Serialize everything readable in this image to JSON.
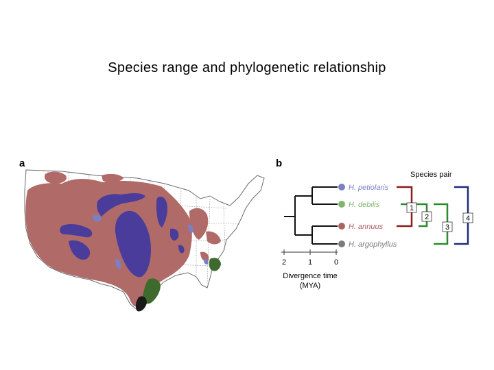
{
  "title": "Species range and phylogenetic relationship",
  "panels": {
    "a": {
      "letter": "a"
    },
    "b": {
      "letter": "b",
      "legend_heading": "Species pair",
      "species": [
        {
          "name": "H. petiolaris",
          "color": "#7b7fc4"
        },
        {
          "name": "H. debilis",
          "color": "#7fb56e"
        },
        {
          "name": "H. annuus",
          "color": "#b06262"
        },
        {
          "name": "H. argophyllus",
          "color": "#7a7a7a"
        }
      ],
      "pair_labels": [
        "1",
        "2",
        "3",
        "4"
      ],
      "pair_colors": [
        "#8b1a1a",
        "#2a8a2a",
        "#2a8a2a",
        "#1f2a7a"
      ],
      "axis": {
        "ticks": [
          "2",
          "1",
          "0"
        ],
        "label_line1": "Divergence time",
        "label_line2": "(MYA)"
      }
    }
  },
  "colors": {
    "annuus_range": "#b06a68",
    "petiolaris_range": "#4a3c9a",
    "debilis_range": "#3f6a2e",
    "argophyllus_range": "#1a1a1a"
  }
}
